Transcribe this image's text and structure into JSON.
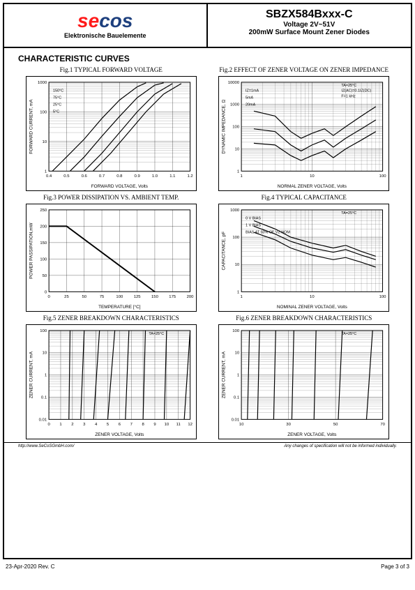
{
  "header": {
    "logo_main": "secos",
    "logo_sub": "Elektronische Bauelemente",
    "part_number": "SBZX584Bxxx-C",
    "voltage_range": "Voltage 2V~51V",
    "description": "200mW Surface Mount Zener Diodes"
  },
  "section_title": "CHARACTERISTIC CURVES",
  "charts": {
    "fig1": {
      "title": "Fig.1 TYPICAL FORWARD VOLTAGE",
      "type": "line",
      "xlabel": "FORWARD VOLTAGE, Volts",
      "ylabel": "FORWARD CURRENT, mA",
      "xlim": [
        0.4,
        1.2
      ],
      "ylim": [
        1,
        1000
      ],
      "yscale": "log",
      "xtick_labels": [
        "0.4",
        "0.5",
        "0.6",
        "0.7",
        "0.8",
        "0.9",
        "1.0",
        "1.1",
        "1.2"
      ],
      "ytick_labels": [
        "1",
        "10",
        "100",
        "1000"
      ],
      "series_labels": [
        "150°C",
        "75°C",
        "25°C",
        "5°C"
      ],
      "series": [
        [
          [
            0.42,
            1
          ],
          [
            0.5,
            3
          ],
          [
            0.6,
            12
          ],
          [
            0.7,
            60
          ],
          [
            0.8,
            250
          ],
          [
            0.9,
            700
          ],
          [
            0.95,
            950
          ]
        ],
        [
          [
            0.52,
            1
          ],
          [
            0.6,
            3
          ],
          [
            0.7,
            15
          ],
          [
            0.8,
            70
          ],
          [
            0.9,
            300
          ],
          [
            1.0,
            800
          ],
          [
            1.05,
            950
          ]
        ],
        [
          [
            0.6,
            1
          ],
          [
            0.7,
            4
          ],
          [
            0.8,
            20
          ],
          [
            0.9,
            100
          ],
          [
            1.0,
            400
          ],
          [
            1.1,
            900
          ]
        ],
        [
          [
            0.65,
            1
          ],
          [
            0.75,
            4
          ],
          [
            0.85,
            20
          ],
          [
            0.95,
            100
          ],
          [
            1.05,
            400
          ],
          [
            1.15,
            900
          ]
        ]
      ],
      "line_color": "#000000",
      "grid_color": "#000000",
      "label_fontsize": 7
    },
    "fig2": {
      "title": "Fig.2 EFFECT OF ZENER VOLTAGE ON ZENER IMPEDANCE",
      "type": "line",
      "xlabel": "NORMAL ZENER VOLTAGE, Volts",
      "ylabel": "DYNAMIC IMPEDANCE, Ω",
      "xlim": [
        1,
        100
      ],
      "ylim": [
        1,
        10000
      ],
      "xscale": "log",
      "yscale": "log",
      "xtick_labels": [
        "1",
        "10",
        "100"
      ],
      "ytick_labels": [
        "1",
        "10",
        "100",
        "1000",
        "10000"
      ],
      "conditions": [
        "TA=25°C",
        "IZ(AC)=0.1IZ(DC)",
        "F=1 kHz"
      ],
      "series_labels": [
        "IZ=1mA",
        "5mA",
        "20mA"
      ],
      "series": [
        [
          [
            1.5,
            500
          ],
          [
            3,
            300
          ],
          [
            5,
            60
          ],
          [
            7,
            30
          ],
          [
            10,
            50
          ],
          [
            15,
            80
          ],
          [
            20,
            40
          ],
          [
            30,
            100
          ],
          [
            50,
            300
          ],
          [
            80,
            800
          ]
        ],
        [
          [
            1.5,
            80
          ],
          [
            3,
            60
          ],
          [
            5,
            15
          ],
          [
            7,
            8
          ],
          [
            10,
            15
          ],
          [
            15,
            25
          ],
          [
            20,
            12
          ],
          [
            30,
            30
          ],
          [
            50,
            80
          ],
          [
            80,
            200
          ]
        ],
        [
          [
            1.5,
            18
          ],
          [
            3,
            15
          ],
          [
            5,
            5
          ],
          [
            7,
            3
          ],
          [
            10,
            5
          ],
          [
            15,
            8
          ],
          [
            20,
            4
          ],
          [
            30,
            10
          ],
          [
            50,
            25
          ],
          [
            80,
            60
          ]
        ]
      ],
      "line_color": "#000000",
      "grid_color": "#000000",
      "label_fontsize": 7
    },
    "fig3": {
      "title": "Fig.3 POWER DISSIPATION VS. AMBIENT TEMP.",
      "type": "line",
      "xlabel": "TEMPERATURE [°C]",
      "ylabel": "POWER PASSIPATION,mW",
      "xlim": [
        0,
        200
      ],
      "ylim": [
        0,
        250
      ],
      "xtick_labels": [
        "0",
        "25",
        "50",
        "75",
        "100",
        "125",
        "150",
        "175",
        "200"
      ],
      "ytick_labels": [
        "0",
        "50",
        "100",
        "150",
        "200",
        "250"
      ],
      "series": [
        [
          [
            0,
            200
          ],
          [
            25,
            200
          ],
          [
            150,
            0
          ]
        ]
      ],
      "line_color": "#000000",
      "line_width": 2,
      "grid_color": "#000000",
      "label_fontsize": 7
    },
    "fig4": {
      "title": "Fig.4 TYPICAL CAPACITANCE",
      "type": "line",
      "xlabel": "NOMINAL ZENER VOLTAGE, Volts",
      "ylabel": "CAPACITANCE, pF",
      "xlim": [
        1,
        100
      ],
      "ylim": [
        1,
        1000
      ],
      "xscale": "log",
      "yscale": "log",
      "xtick_labels": [
        "1",
        "10",
        "100"
      ],
      "ytick_labels": [
        "1",
        "10",
        "100",
        "1000"
      ],
      "conditions": [
        "TA=25°C"
      ],
      "series_labels": [
        "0 V BIAS",
        "1 V BIAS",
        "BIAS AT 50% OF VZ NOM"
      ],
      "series": [
        [
          [
            1.5,
            400
          ],
          [
            3,
            200
          ],
          [
            5,
            100
          ],
          [
            10,
            60
          ],
          [
            20,
            40
          ],
          [
            30,
            50
          ],
          [
            50,
            30
          ],
          [
            80,
            20
          ]
        ],
        [
          [
            1.5,
            250
          ],
          [
            3,
            130
          ],
          [
            5,
            70
          ],
          [
            10,
            40
          ],
          [
            20,
            28
          ],
          [
            30,
            35
          ],
          [
            50,
            22
          ],
          [
            80,
            15
          ]
        ],
        [
          [
            1.5,
            150
          ],
          [
            3,
            80
          ],
          [
            5,
            40
          ],
          [
            10,
            22
          ],
          [
            20,
            15
          ],
          [
            30,
            18
          ],
          [
            50,
            12
          ],
          [
            80,
            8
          ]
        ]
      ],
      "line_color": "#000000",
      "grid_color": "#000000",
      "label_fontsize": 7
    },
    "fig5": {
      "title": "Fig.5 ZENER BREAKDOWN CHARACTERISTICS",
      "type": "line",
      "xlabel": "ZENER VOLTAGE, Volts",
      "ylabel": "ZENER CURRENT, mA",
      "xlim": [
        0,
        12
      ],
      "ylim": [
        0.01,
        100
      ],
      "yscale": "log",
      "xtick_labels": [
        "0",
        "1",
        "2",
        "3",
        "4",
        "5",
        "6",
        "7",
        "8",
        "9",
        "10",
        "11",
        "12"
      ],
      "ytick_labels": [
        "0.01",
        "0.1",
        "1",
        "10",
        "100"
      ],
      "conditions": [
        "TA=25°C"
      ],
      "series": [
        [
          [
            1.7,
            0.01
          ],
          [
            1.8,
            100
          ]
        ],
        [
          [
            2.7,
            0.01
          ],
          [
            3.0,
            100
          ]
        ],
        [
          [
            3.8,
            0.01
          ],
          [
            4.3,
            100
          ]
        ],
        [
          [
            5.0,
            0.01
          ],
          [
            5.6,
            100
          ]
        ],
        [
          [
            6.5,
            0.01
          ],
          [
            6.8,
            100
          ]
        ],
        [
          [
            8.0,
            0.01
          ],
          [
            8.2,
            100
          ]
        ],
        [
          [
            9.8,
            0.01
          ],
          [
            10.0,
            100
          ]
        ],
        [
          [
            11.5,
            0.01
          ],
          [
            12.0,
            100
          ]
        ]
      ],
      "line_color": "#000000",
      "grid_color": "#000000",
      "label_fontsize": 7
    },
    "fig6": {
      "title": "Fig.6 ZENER BREAKDOWN CHARACTERISTICS",
      "type": "line",
      "xlabel": "ZENER VOLTAGE, Volts",
      "ylabel": "ZENER CURRENT, mA",
      "xlim": [
        10,
        80
      ],
      "ylim": [
        0.01,
        100
      ],
      "yscale": "log",
      "xtick_labels": [
        "10",
        "30",
        "50",
        "70"
      ],
      "ytick_labels": [
        "0.01",
        "0.1",
        "1",
        "10",
        "100"
      ],
      "conditions": [
        "TA=25°C"
      ],
      "series": [
        [
          [
            13,
            0.01
          ],
          [
            14,
            100
          ]
        ],
        [
          [
            18,
            0.01
          ],
          [
            19,
            100
          ]
        ],
        [
          [
            26,
            0.01
          ],
          [
            27,
            100
          ]
        ],
        [
          [
            35,
            0.01
          ],
          [
            36,
            100
          ]
        ],
        [
          [
            46,
            0.01
          ],
          [
            47,
            100
          ]
        ],
        [
          [
            58,
            0.01
          ],
          [
            60,
            100
          ]
        ],
        [
          [
            72,
            0.01
          ],
          [
            75,
            100
          ]
        ]
      ],
      "line_color": "#000000",
      "grid_color": "#000000",
      "label_fontsize": 7
    }
  },
  "footer": {
    "url": "http://www.SeCoSGmbH.com/",
    "disclaimer": "Any changes of specification will not be informed individually.",
    "date_rev": "23-Apr-2020 Rev. C",
    "page": "Page  3  of  3"
  }
}
